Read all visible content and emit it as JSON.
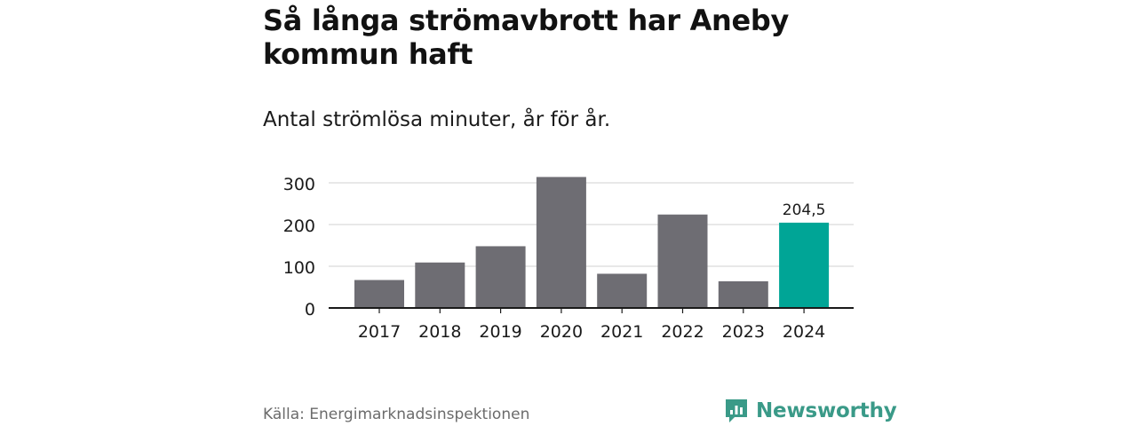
{
  "title": "Så långa strömavbrott har Aneby kommun haft",
  "subtitle": "Antal strömlösa minuter, år för år.",
  "source": "Källa: Energimarknadsinspektionen",
  "brand": {
    "name": "Newsworthy",
    "icon": "newsworthy-logo-icon",
    "color": "#3a9a88"
  },
  "colors": {
    "bar": "#6e6d73",
    "highlight": "#00a596",
    "grid": "#d9d9d9",
    "axis": "#1a1a1a"
  },
  "chart_data": {
    "type": "bar",
    "title": "Så långa strömavbrott har Aneby kommun haft",
    "subtitle": "Antal strömlösa minuter, år för år.",
    "categories": [
      "2017",
      "2018",
      "2019",
      "2020",
      "2021",
      "2022",
      "2023",
      "2024"
    ],
    "values": [
      67,
      109,
      148,
      314,
      82,
      224,
      64,
      204.5
    ],
    "highlight_index": 7,
    "data_labels": [
      {
        "index": 7,
        "text": "204,5"
      }
    ],
    "yticks": [
      0,
      100,
      200,
      300
    ],
    "ylim": [
      0,
      300
    ],
    "grid": true,
    "xlabel": "",
    "ylabel": ""
  }
}
